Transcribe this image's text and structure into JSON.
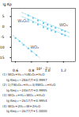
{
  "chart_data": {
    "type": "scatter",
    "xlabel": "10³ · T⁻¹",
    "ylabel": "lg Kp",
    "xlim": [
      0.55,
      1.35
    ],
    "ylim": [
      -17,
      9
    ],
    "xticks": [
      0.6,
      0.8,
      {
        "value": 1.0,
        "label": "1.0"
      },
      1.2
    ],
    "yticks": [
      -15,
      -10,
      -5,
      0,
      5
    ],
    "series": [
      {
        "color": "#60c8e8",
        "marker": "square",
        "line_style": "dashed",
        "x": [
          0.76,
          0.82,
          0.88,
          0.95,
          1.0,
          1.05,
          1.1,
          1.18,
          1.22
        ],
        "values": [
          5.5,
          4.3,
          3.1,
          1.8,
          1.0,
          0.2,
          -0.5,
          -1.6,
          -2.2
        ],
        "fit_line": {
          "x": [
            0.68,
            1.28
          ],
          "values": [
            7.0,
            -3.0
          ]
        }
      },
      {
        "color": "#60c8e8",
        "marker": "square",
        "line_style": "dashed",
        "x": [
          0.76,
          0.82,
          0.88,
          0.95,
          1.0,
          1.05,
          1.1,
          1.18,
          1.22
        ],
        "values": [
          3.5,
          2.3,
          1.1,
          -0.2,
          -1.0,
          -1.8,
          -2.5,
          -3.6,
          -4.2
        ],
        "fit_line": {
          "x": [
            0.68,
            1.28
          ],
          "values": [
            5.0,
            -5.0
          ]
        }
      },
      {
        "color": "#60c8e8",
        "marker": "square",
        "line_style": "dashed",
        "x": [
          0.6,
          0.65,
          0.7,
          0.76,
          0.8,
          0.86
        ],
        "values": [
          -5.5,
          -7.0,
          -8.8,
          -10.5,
          -12.0,
          -13.8
        ],
        "fit_line": {
          "x": [
            0.57,
            0.9
          ],
          "values": [
            -4.2,
            -15.0
          ]
        }
      }
    ],
    "annotations": [
      {
        "text": "WO₃",
        "x": 1.2,
        "y": 1.0,
        "color": "#555555"
      },
      {
        "text": "W₄O₁₁",
        "x": 0.7,
        "y": 2.8,
        "color": "#555555"
      },
      {
        "text": "WO₂",
        "x": 0.84,
        "y": -10.0,
        "color": "#555555"
      }
    ],
    "caption": [
      "(1) WO₃+H₂=½W₂O₅+H₂O",
      "lg Keq=−2867/T+0.9997",
      "(2) 1/7W₄O₁₁+H₂=3/4WO₂.₅+H₂O",
      "lg Keq=−2467/T+0.9995",
      "(3) WO₂.₉+H₂=WO₂.₅+H₂O",
      "lg Keq=−2617/T+0.9954",
      "(4) WO₂+2H₂=W+2H₂O",
      "lg Keq=−2677/T+1.0000"
    ]
  }
}
